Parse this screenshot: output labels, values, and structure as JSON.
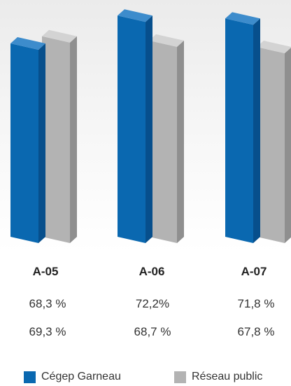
{
  "chart_data": {
    "type": "bar",
    "categories": [
      "A-05",
      "A-06",
      "A-07"
    ],
    "series": [
      {
        "name": "Cégep Garneau",
        "values": [
          68.3,
          72.2,
          71.8
        ],
        "labels": [
          "68,3 %",
          "72,2%",
          "71,8 %"
        ]
      },
      {
        "name": "Réseau public",
        "values": [
          69.3,
          68.7,
          67.8
        ],
        "labels": [
          "69,3 %",
          "68,7 %",
          "67,8 %"
        ]
      }
    ]
  },
  "colors": {
    "garneau_front": "#0a68b0",
    "garneau_side": "#074f8c",
    "garneau_top": "#3d8ccc",
    "public_front": "#b3b3b3",
    "public_side": "#8f8f8f",
    "public_top": "#d3d3d3"
  }
}
